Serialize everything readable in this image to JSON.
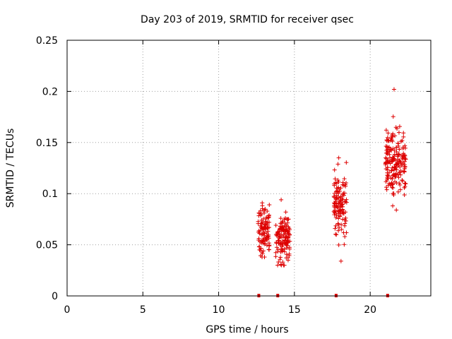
{
  "chart_data": {
    "type": "scatter",
    "title": "Day 203 of 2019, SRMTID for receiver qsec",
    "xlabel": "GPS time / hours",
    "ylabel": "SRMTID / TECUs",
    "xlim": [
      0,
      24
    ],
    "ylim": [
      0,
      0.25
    ],
    "x_ticks": [
      "0",
      "5",
      "10",
      "15",
      "20"
    ],
    "y_ticks": [
      "0",
      "0.05",
      "0.1",
      "0.15",
      "0.2",
      "0.25"
    ],
    "grid": true,
    "marker": "+",
    "color": "#dd0000",
    "clusters": [
      {
        "x_range": [
          12.6,
          13.35
        ],
        "y_center": 0.063,
        "y_spread": 0.011,
        "y_min": 0.038,
        "y_max": 0.091,
        "count": 110
      },
      {
        "x_range": [
          13.75,
          14.7
        ],
        "y_center": 0.055,
        "y_spread": 0.012,
        "y_min": 0.03,
        "y_max": 0.094,
        "count": 130
      },
      {
        "x_range": [
          17.6,
          18.45
        ],
        "y_center": 0.09,
        "y_spread": 0.016,
        "y_min": 0.034,
        "y_max": 0.135,
        "count": 120
      },
      {
        "x_range": [
          21.0,
          22.35
        ],
        "y_center": 0.128,
        "y_spread": 0.017,
        "y_min": 0.084,
        "y_max": 0.202,
        "count": 190
      }
    ],
    "zero_markers": [
      12.65,
      13.9,
      17.75,
      21.15
    ]
  }
}
